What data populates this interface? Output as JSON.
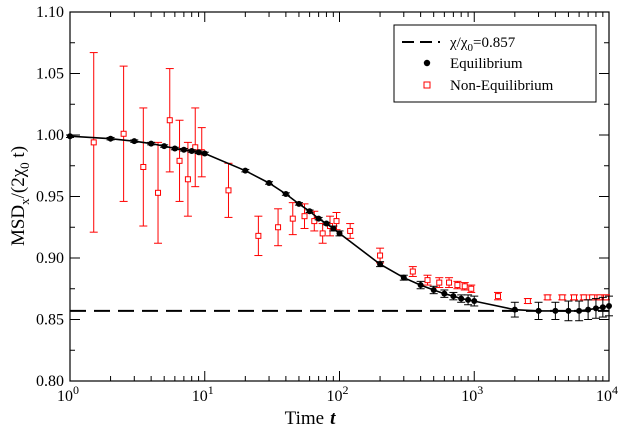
{
  "chart_data": {
    "type": "scatter",
    "xscale": "log",
    "xlim": [
      1,
      10000
    ],
    "ylim": [
      0.8,
      1.1
    ],
    "xlabel": "Time",
    "xlabel_var": "t",
    "ylabel_main": "MSD",
    "ylabel_sub": "x",
    "ylabel_mid": "/(2χ",
    "ylabel_sub2": "0",
    "ylabel_end": " t)",
    "x_ticks": [
      {
        "value": 1,
        "base": "10",
        "exp": "0"
      },
      {
        "value": 10,
        "base": "10",
        "exp": "1"
      },
      {
        "value": 100,
        "base": "10",
        "exp": "2"
      },
      {
        "value": 1000,
        "base": "10",
        "exp": "3"
      },
      {
        "value": 10000,
        "base": "10",
        "exp": "4"
      }
    ],
    "y_ticks": [
      {
        "value": 0.8,
        "label": "0.80"
      },
      {
        "value": 0.85,
        "label": "0.85"
      },
      {
        "value": 0.9,
        "label": "0.90"
      },
      {
        "value": 0.95,
        "label": "0.95"
      },
      {
        "value": 1.0,
        "label": "1.00"
      },
      {
        "value": 1.05,
        "label": "1.05"
      },
      {
        "value": 1.1,
        "label": "1.10"
      }
    ],
    "reference_line": {
      "value": 0.857,
      "label_prefix": "χ/χ",
      "label_sub": "0",
      "label_suffix": "=0.857",
      "color": "#000000"
    },
    "legend": {
      "position": "top-right",
      "equilibrium_label": "Equilibrium",
      "nonequilibrium_label": "Non-Equilibrium"
    },
    "series": [
      {
        "name": "Equilibrium",
        "color": "#000000",
        "marker": "filled-circle",
        "x": [
          1,
          2,
          3,
          4,
          5,
          6,
          7,
          8,
          9,
          10,
          20,
          30,
          40,
          50,
          60,
          70,
          80,
          90,
          100,
          200,
          300,
          400,
          500,
          600,
          700,
          800,
          900,
          1000,
          2000,
          3000,
          4000,
          5000,
          6000,
          7000,
          8000,
          9000,
          10000
        ],
        "y": [
          0.999,
          0.997,
          0.995,
          0.993,
          0.991,
          0.989,
          0.988,
          0.987,
          0.986,
          0.985,
          0.971,
          0.961,
          0.952,
          0.944,
          0.938,
          0.932,
          0.928,
          0.924,
          0.92,
          0.895,
          0.884,
          0.878,
          0.874,
          0.871,
          0.869,
          0.867,
          0.866,
          0.865,
          0.858,
          0.857,
          0.857,
          0.857,
          0.857,
          0.858,
          0.859,
          0.86,
          0.861
        ],
        "err": [
          0.001,
          0.001,
          0.001,
          0.001,
          0.001,
          0.001,
          0.001,
          0.001,
          0.001,
          0.001,
          0.001,
          0.001,
          0.001,
          0.001,
          0.001,
          0.001,
          0.001,
          0.002,
          0.002,
          0.002,
          0.002,
          0.003,
          0.003,
          0.003,
          0.003,
          0.003,
          0.004,
          0.004,
          0.006,
          0.007,
          0.007,
          0.008,
          0.008,
          0.008,
          0.008,
          0.008,
          0.008
        ]
      },
      {
        "name": "Non-Equilibrium",
        "color": "#ff0000",
        "marker": "open-square",
        "x": [
          1.5,
          2.5,
          3.5,
          4.5,
          5.5,
          6.5,
          7.5,
          8.5,
          9.5,
          15,
          25,
          35,
          45,
          55,
          65,
          75,
          85,
          95,
          120,
          200,
          350,
          450,
          550,
          650,
          750,
          850,
          950,
          1500,
          2500,
          3500,
          4500,
          5500,
          6500,
          7500,
          8500,
          9500
        ],
        "y": [
          0.994,
          1.001,
          0.974,
          0.953,
          1.012,
          0.979,
          0.964,
          0.99,
          0.986,
          0.955,
          0.918,
          0.925,
          0.932,
          0.934,
          0.93,
          0.92,
          0.926,
          0.93,
          0.922,
          0.902,
          0.889,
          0.882,
          0.88,
          0.88,
          0.878,
          0.877,
          0.875,
          0.869,
          0.865,
          0.868,
          0.868,
          0.868,
          0.868,
          0.868,
          0.868,
          0.868
        ],
        "err": [
          0.073,
          0.055,
          0.048,
          0.041,
          0.042,
          0.033,
          0.03,
          0.032,
          0.02,
          0.022,
          0.016,
          0.015,
          0.013,
          0.01,
          0.008,
          0.008,
          0.008,
          0.007,
          0.006,
          0.006,
          0.004,
          0.004,
          0.004,
          0.004,
          0.003,
          0.003,
          0.003,
          0.003,
          0.002,
          0.002,
          0.002,
          0.002,
          0.002,
          0.002,
          0.002,
          0.002
        ]
      }
    ]
  }
}
